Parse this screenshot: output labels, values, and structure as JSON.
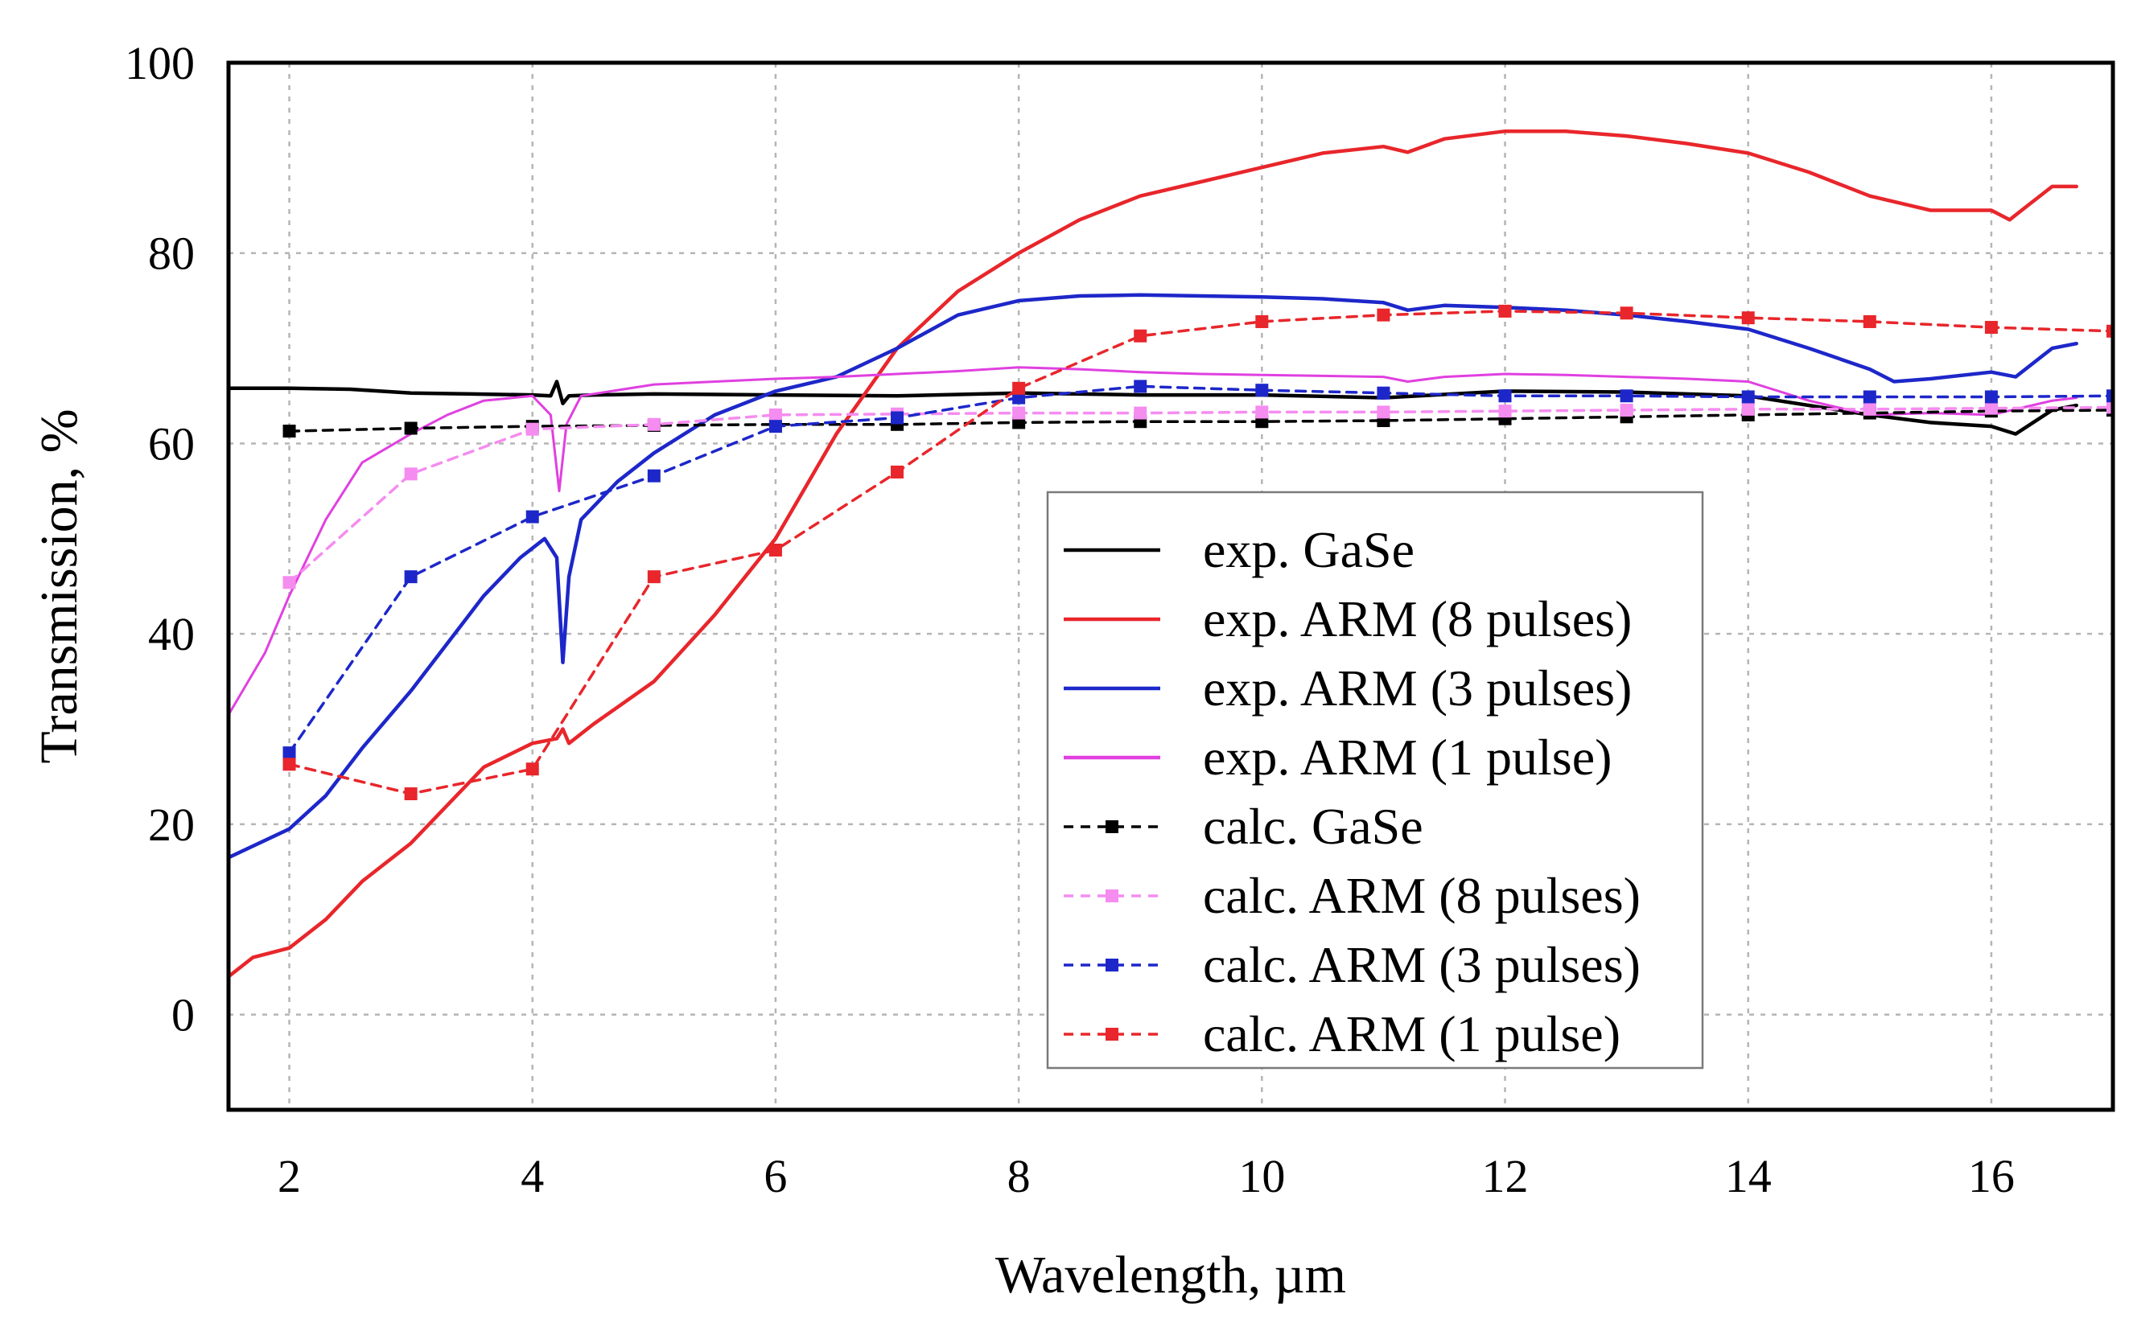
{
  "chart_data": {
    "type": "line",
    "title": "",
    "xlabel": "Wavelength, µm",
    "ylabel": "Transmission, %",
    "xlim": [
      1.5,
      17
    ],
    "ylim": [
      -10,
      100
    ],
    "xticks": [
      "2",
      "4",
      "6",
      "8",
      "10",
      "12",
      "14",
      "16"
    ],
    "xtick_values": [
      2,
      4,
      6,
      8,
      10,
      12,
      14,
      16
    ],
    "yticks": [
      "0",
      "20",
      "40",
      "60",
      "80",
      "100"
    ],
    "ytick_values": [
      0,
      20,
      40,
      60,
      80,
      100
    ],
    "grid": true,
    "legend_position": "center-right",
    "colors": {
      "black": "#000000",
      "red": "#e8262b",
      "blue": "#1d27c9",
      "magenta": "#e040e0",
      "pink": "#f58cf0"
    },
    "series": [
      {
        "name": "exp. GaSe",
        "style": "solid",
        "color": "#000000",
        "x": [
          1.5,
          2,
          2.5,
          3,
          3.5,
          4,
          4.15,
          4.2,
          4.25,
          4.3,
          4.5,
          5,
          6,
          7,
          8,
          9,
          10,
          11,
          12,
          13,
          14,
          15,
          15.5,
          16,
          16.2,
          16.5,
          16.7
        ],
        "y": [
          65.8,
          65.8,
          65.7,
          65.3,
          65.2,
          65.1,
          65.0,
          66.5,
          64.2,
          65.0,
          65.1,
          65.2,
          65.1,
          65.0,
          65.3,
          65.1,
          65.1,
          64.8,
          65.5,
          65.4,
          65.0,
          63.0,
          62.2,
          61.8,
          61.0,
          63.5,
          64.0
        ]
      },
      {
        "name": "exp. ARM (8 pulses)",
        "style": "solid",
        "color": "#e8262b",
        "x": [
          1.5,
          1.7,
          2,
          2.3,
          2.6,
          3,
          3.3,
          3.6,
          4,
          4.2,
          4.25,
          4.3,
          4.5,
          5,
          5.5,
          6,
          6.5,
          7,
          7.5,
          8,
          8.5,
          9,
          9.5,
          10,
          10.5,
          11,
          11.2,
          11.5,
          12,
          12.5,
          13,
          13.5,
          14,
          14.5,
          15,
          15.5,
          16,
          16.15,
          16.3,
          16.5,
          16.7
        ],
        "y": [
          4,
          6,
          7,
          10,
          14,
          18,
          22,
          26,
          28.5,
          29,
          30,
          28.5,
          30.5,
          35,
          42,
          50,
          61,
          70,
          76,
          80,
          83.5,
          86,
          87.5,
          89,
          90.5,
          91.2,
          90.6,
          92,
          92.8,
          92.8,
          92.3,
          91.5,
          90.5,
          88.5,
          86,
          84.5,
          84.5,
          83.5,
          85,
          87,
          87
        ]
      },
      {
        "name": "exp. ARM (3 pulses)",
        "style": "solid",
        "color": "#1d27c9",
        "x": [
          1.5,
          2,
          2.3,
          2.6,
          3,
          3.3,
          3.6,
          3.9,
          4.1,
          4.2,
          4.25,
          4.3,
          4.4,
          4.7,
          5,
          5.5,
          6,
          6.5,
          7,
          7.5,
          8,
          8.5,
          9,
          9.5,
          10,
          10.5,
          11,
          11.2,
          11.5,
          12,
          12.5,
          13,
          13.5,
          14,
          14.5,
          15,
          15.2,
          15.5,
          16,
          16.2,
          16.5,
          16.7
        ],
        "y": [
          16.5,
          19.5,
          23,
          28,
          34,
          39,
          44,
          48,
          50,
          48,
          37,
          46,
          52,
          56,
          59,
          63,
          65.5,
          67,
          70,
          73.5,
          75,
          75.5,
          75.6,
          75.5,
          75.4,
          75.2,
          74.8,
          74.0,
          74.5,
          74.3,
          74.0,
          73.5,
          72.8,
          72.0,
          70.0,
          67.8,
          66.5,
          66.8,
          67.5,
          67.0,
          70.0,
          70.5
        ]
      },
      {
        "name": "exp. ARM (1 pulse)",
        "style": "solid",
        "color": "#e040e0",
        "x": [
          1.5,
          1.8,
          2,
          2.3,
          2.6,
          3,
          3.3,
          3.6,
          4,
          4.15,
          4.22,
          4.28,
          4.4,
          5,
          5.5,
          6,
          6.5,
          7,
          7.5,
          8,
          8.5,
          9,
          9.5,
          10,
          10.5,
          11,
          11.2,
          11.5,
          12,
          12.5,
          13,
          13.5,
          14,
          14.5,
          15,
          15.5,
          16,
          16.5,
          16.7
        ],
        "y": [
          31.5,
          38,
          44,
          52,
          58,
          61,
          63,
          64.5,
          65,
          63,
          55,
          62,
          65,
          66.2,
          66.5,
          66.8,
          67,
          67.3,
          67.6,
          68,
          67.8,
          67.5,
          67.3,
          67.2,
          67.1,
          67.0,
          66.5,
          67.0,
          67.3,
          67.2,
          67.0,
          66.8,
          66.5,
          64.5,
          63.0,
          63.2,
          63.0,
          64.5,
          64.8
        ]
      },
      {
        "name": "calc. GaSe",
        "style": "dashed",
        "color": "#000000",
        "x": [
          2,
          3,
          4,
          5,
          6,
          7,
          8,
          9,
          10,
          11,
          12,
          13,
          14,
          15,
          16,
          17
        ],
        "y": [
          61.3,
          61.6,
          61.8,
          61.9,
          62.0,
          62.0,
          62.2,
          62.3,
          62.3,
          62.4,
          62.6,
          62.8,
          63.0,
          63.2,
          63.4,
          63.5
        ]
      },
      {
        "name": "calc. ARM (8 pulses)",
        "style": "dashed",
        "color": "#f58cf0",
        "x": [
          2,
          3,
          4,
          5,
          6,
          7,
          8,
          9,
          10,
          11,
          12,
          13,
          14,
          15,
          16,
          17
        ],
        "y": [
          45.4,
          56.8,
          61.5,
          62.0,
          63.0,
          63.1,
          63.2,
          63.2,
          63.3,
          63.3,
          63.4,
          63.5,
          63.6,
          63.6,
          63.7,
          63.8
        ]
      },
      {
        "name": "calc. ARM (3 pulses)",
        "style": "dashed",
        "color": "#1d27c9",
        "x": [
          2,
          3,
          4,
          5,
          6,
          7,
          8,
          9,
          10,
          11,
          12,
          13,
          14,
          15,
          16,
          17
        ],
        "y": [
          27.5,
          46.0,
          52.3,
          56.6,
          61.8,
          62.7,
          64.8,
          66.0,
          65.6,
          65.3,
          65.0,
          65.0,
          64.9,
          64.9,
          64.9,
          65.0
        ]
      },
      {
        "name": "calc. ARM (1 pulse)",
        "style": "dashed",
        "color": "#e8262b",
        "x": [
          2,
          3,
          4,
          5,
          6,
          7,
          8,
          9,
          10,
          11,
          12,
          13,
          14,
          15,
          16,
          17
        ],
        "y": [
          26.3,
          23.2,
          25.8,
          46.0,
          48.8,
          57.0,
          65.8,
          71.3,
          72.8,
          73.5,
          73.9,
          73.7,
          73.2,
          72.8,
          72.2,
          71.8
        ]
      }
    ]
  }
}
